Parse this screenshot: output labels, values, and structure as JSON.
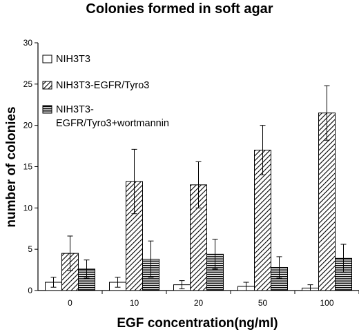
{
  "chart_data": {
    "type": "bar",
    "title": "Colonies formed in soft agar",
    "xlabel": "EGF concentration(ng/ml)",
    "ylabel": "number of colonies",
    "categories": [
      "0",
      "10",
      "20",
      "50",
      "100"
    ],
    "ylim": [
      0,
      30
    ],
    "yticks": [
      0,
      5,
      10,
      15,
      20,
      25,
      30
    ],
    "grid": false,
    "legend_position": "top-left",
    "series": [
      {
        "name": "NIH3T3",
        "values": [
          1.0,
          1.0,
          0.7,
          0.5,
          0.3
        ],
        "errors": [
          0.6,
          0.6,
          0.5,
          0.5,
          0.4
        ],
        "pattern": "open"
      },
      {
        "name": "NIH3T3-EGFR/Tyro3",
        "values": [
          4.5,
          13.2,
          12.8,
          17.0,
          21.5
        ],
        "errors": [
          2.1,
          3.9,
          2.8,
          3.0,
          3.3
        ],
        "pattern": "diagonal"
      },
      {
        "name": "NIH3T3-EGFR/Tyro3+wortmannin",
        "values": [
          2.6,
          3.8,
          4.4,
          2.8,
          3.9
        ],
        "errors": [
          1.1,
          2.2,
          1.8,
          1.3,
          1.7
        ],
        "pattern": "horizontal"
      }
    ],
    "legend_lines": [
      [
        "NIH3T3"
      ],
      [
        "NIH3T3-EGFR/Tyro3"
      ],
      [
        "NIH3T3-",
        "EGFR/Tyro3+wortmannin"
      ]
    ]
  }
}
